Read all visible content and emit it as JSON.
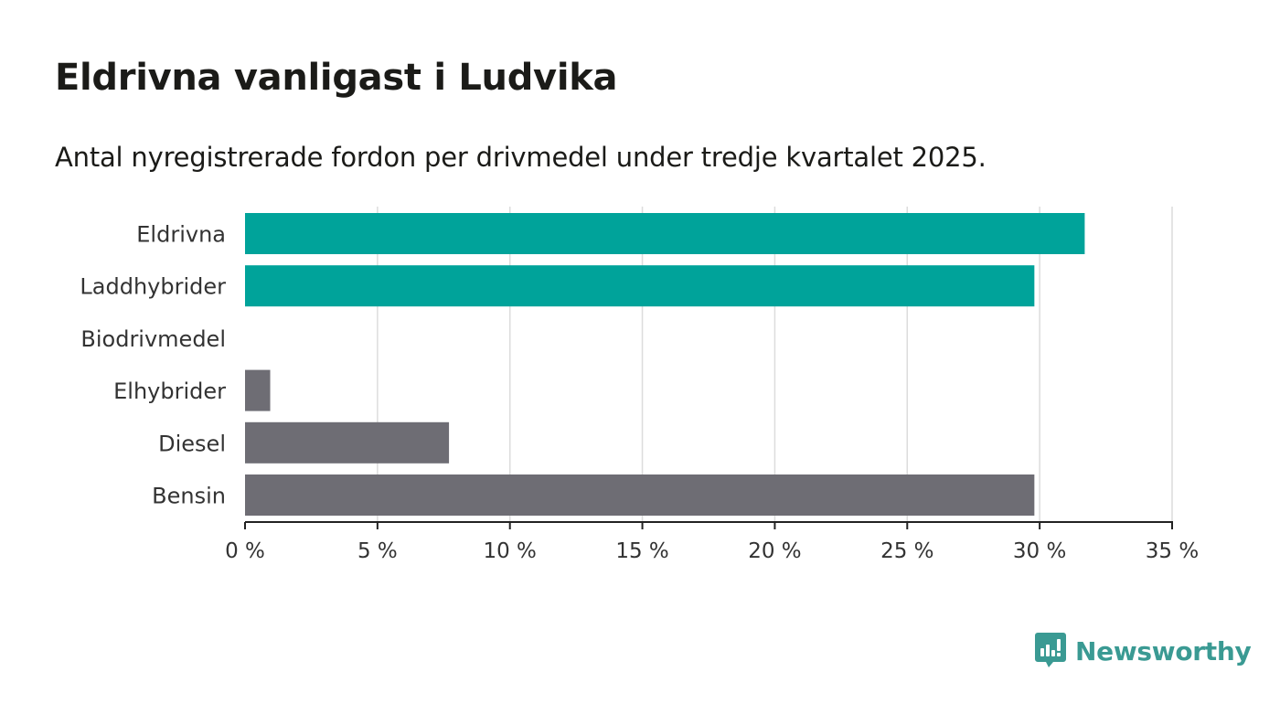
{
  "header": {
    "title": "Eldrivna vanligast i Ludvika",
    "subtitle": "Antal nyregistrerade fordon per drivmedel under tredje kvartalet 2025."
  },
  "brand": {
    "name": "Newsworthy",
    "color": "#3a9a93"
  },
  "chart_data": {
    "type": "bar",
    "orientation": "horizontal",
    "title": "Eldrivna vanligast i Ludvika",
    "subtitle": "Antal nyregistrerade fordon per drivmedel under tredje kvartalet 2025.",
    "xlabel": "",
    "ylabel": "",
    "categories": [
      "Eldrivna",
      "Laddhybrider",
      "Biodrivmedel",
      "Elhybrider",
      "Diesel",
      "Bensin"
    ],
    "values": [
      31.7,
      29.8,
      0,
      0.95,
      7.7,
      29.8
    ],
    "colors": [
      "#00a39a",
      "#00a39a",
      "#6e6d74",
      "#6e6d74",
      "#6e6d74",
      "#6e6d74"
    ],
    "xlim": [
      0,
      35
    ],
    "xticks": [
      0,
      5,
      10,
      15,
      20,
      25,
      30,
      35
    ],
    "tick_suffix": " %",
    "grid": true
  }
}
